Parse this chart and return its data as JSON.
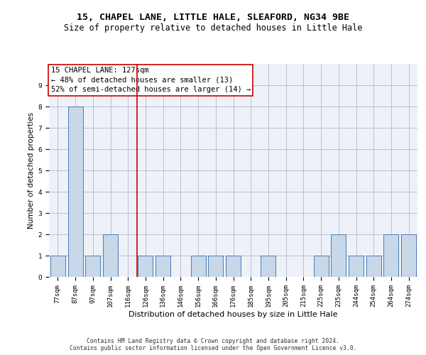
{
  "title1": "15, CHAPEL LANE, LITTLE HALE, SLEAFORD, NG34 9BE",
  "title2": "Size of property relative to detached houses in Little Hale",
  "xlabel": "Distribution of detached houses by size in Little Hale",
  "ylabel": "Number of detached properties",
  "categories": [
    "77sqm",
    "87sqm",
    "97sqm",
    "107sqm",
    "116sqm",
    "126sqm",
    "136sqm",
    "146sqm",
    "156sqm",
    "166sqm",
    "176sqm",
    "185sqm",
    "195sqm",
    "205sqm",
    "215sqm",
    "225sqm",
    "235sqm",
    "244sqm",
    "254sqm",
    "264sqm",
    "274sqm"
  ],
  "values": [
    1,
    8,
    1,
    2,
    0,
    1,
    1,
    0,
    1,
    1,
    1,
    0,
    1,
    0,
    0,
    1,
    2,
    1,
    1,
    2,
    2
  ],
  "bar_color": "#c8d8e8",
  "bar_edge_color": "#4a7ab5",
  "highlight_line_color": "#cc0000",
  "annotation_box_text": "15 CHAPEL LANE: 127sqm\n← 48% of detached houses are smaller (13)\n52% of semi-detached houses are larger (14) →",
  "annotation_box_color": "#cc0000",
  "ylim": [
    0,
    10
  ],
  "yticks": [
    0,
    1,
    2,
    3,
    4,
    5,
    6,
    7,
    8,
    9,
    10
  ],
  "grid_color": "#aaaacc",
  "background_color": "#eef2f8",
  "footer1": "Contains HM Land Registry data © Crown copyright and database right 2024.",
  "footer2": "Contains public sector information licensed under the Open Government Licence v3.0.",
  "title1_fontsize": 9.5,
  "title2_fontsize": 8.5,
  "xlabel_fontsize": 8,
  "ylabel_fontsize": 7.5,
  "tick_fontsize": 6.5,
  "annotation_fontsize": 7.5,
  "footer_fontsize": 5.8
}
